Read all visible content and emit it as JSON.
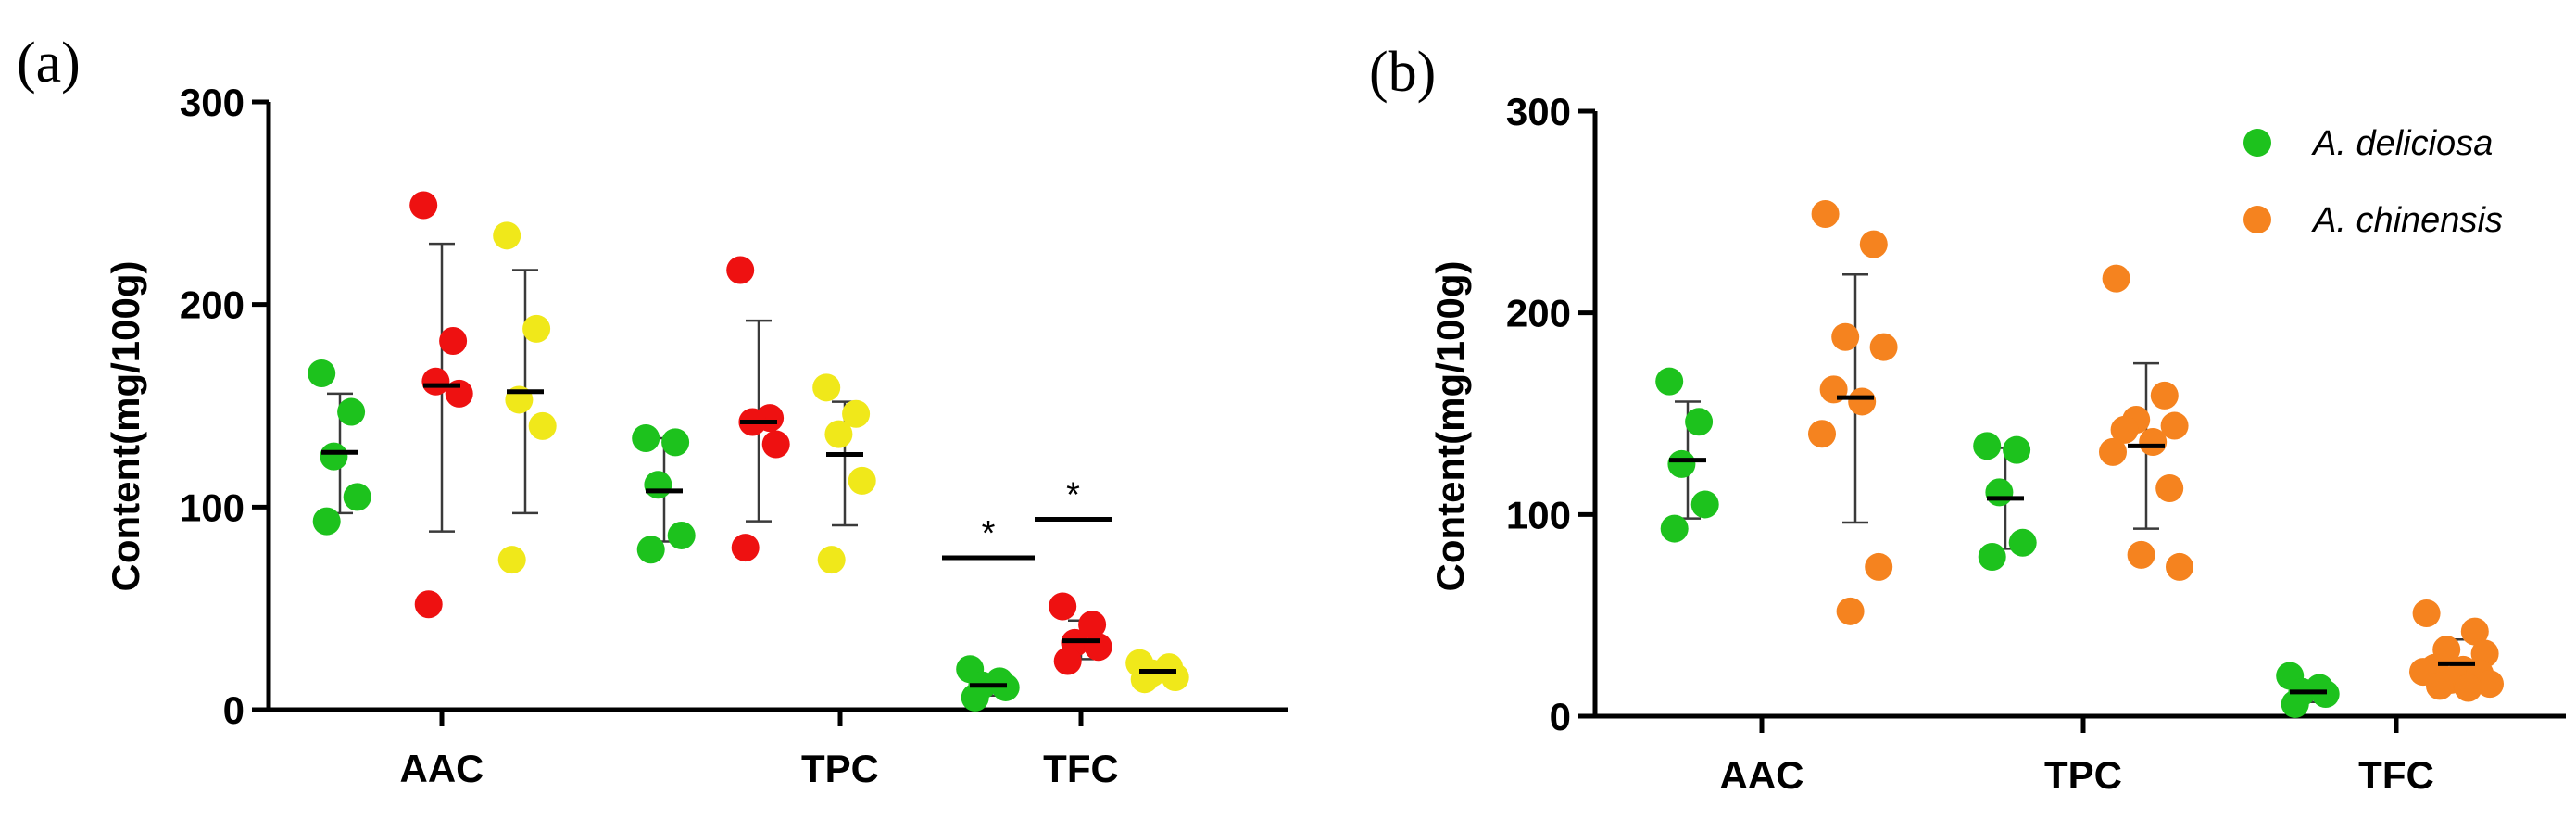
{
  "chart_data": [
    {
      "type": "scatter",
      "panel_label": "(a)",
      "ylabel": "Content(mg/100g)",
      "ylim": [
        0,
        300
      ],
      "yticks": [
        0,
        100,
        200,
        300
      ],
      "categories": [
        "AAC",
        "TPC",
        "TFC"
      ],
      "colors": [
        "#1dc21d",
        "#ee1111",
        "#f0e81a"
      ],
      "groups": [
        {
          "category": "AAC",
          "color": "#1dc21d",
          "points": [
            166,
            147,
            125,
            105,
            93
          ],
          "mean": 127,
          "err_low": 97,
          "err_high": 156
        },
        {
          "category": "AAC",
          "color": "#ee1111",
          "points": [
            249,
            182,
            162,
            156,
            52
          ],
          "mean": 160,
          "err_low": 88,
          "err_high": 230
        },
        {
          "category": "AAC",
          "color": "#f0e81a",
          "points": [
            234,
            188,
            153,
            140,
            74
          ],
          "mean": 157,
          "err_low": 97,
          "err_high": 217
        },
        {
          "category": "TPC",
          "color": "#1dc21d",
          "points": [
            134,
            132,
            111,
            86,
            79
          ],
          "mean": 108,
          "err_low": 83,
          "err_high": 134
        },
        {
          "category": "TPC",
          "color": "#ee1111",
          "points": [
            217,
            144,
            142,
            131,
            80
          ],
          "mean": 142,
          "err_low": 93,
          "err_high": 192
        },
        {
          "category": "TPC",
          "color": "#f0e81a",
          "points": [
            159,
            146,
            136,
            113,
            74
          ],
          "mean": 126,
          "err_low": 91,
          "err_high": 152
        },
        {
          "category": "TFC",
          "color": "#1dc21d",
          "points": [
            20,
            14,
            12,
            11,
            6
          ],
          "mean": 12,
          "err_low": 7,
          "err_high": 17
        },
        {
          "category": "TFC",
          "color": "#ee1111",
          "points": [
            51,
            42,
            33,
            31,
            24
          ],
          "mean": 34,
          "err_low": 25,
          "err_high": 44
        },
        {
          "category": "TFC",
          "color": "#f0e81a",
          "points": [
            23,
            21,
            18,
            16,
            15
          ],
          "mean": 19,
          "err_low": 15,
          "err_high": 22
        }
      ],
      "significance": [
        {
          "category": "TFC",
          "from_group": 0,
          "to_group": 1,
          "label": "*",
          "y": 75
        },
        {
          "category": "TFC",
          "from_group": 1,
          "to_group": 2,
          "label": "*",
          "y": 94
        }
      ]
    },
    {
      "type": "scatter",
      "panel_label": "(b)",
      "ylabel": "Content(mg/100g)",
      "ylim": [
        0,
        300
      ],
      "yticks": [
        0,
        100,
        200,
        300
      ],
      "categories": [
        "AAC",
        "TPC",
        "TFC"
      ],
      "legend": [
        {
          "label": "A. deliciosa",
          "color": "#1dc21d"
        },
        {
          "label": "A. chinensis",
          "color": "#f5831f"
        }
      ],
      "series": [
        {
          "name": "A. deliciosa",
          "color": "#1dc21d",
          "groups": [
            {
              "category": "AAC",
              "points": [
                166,
                146,
                125,
                105,
                93
              ],
              "mean": 127,
              "err_low": 98,
              "err_high": 156
            },
            {
              "category": "TPC",
              "points": [
                134,
                132,
                111,
                86,
                79
              ],
              "mean": 108,
              "err_low": 83,
              "err_high": 133
            },
            {
              "category": "TFC",
              "points": [
                20,
                14,
                12,
                11,
                6
              ],
              "mean": 12,
              "err_low": 7,
              "err_high": 17
            }
          ]
        },
        {
          "name": "A. chinensis",
          "color": "#f5831f",
          "groups": [
            {
              "category": "AAC",
              "points": [
                249,
                234,
                188,
                183,
                162,
                156,
                140,
                74,
                52
              ],
              "mean": 158,
              "err_low": 96,
              "err_high": 219
            },
            {
              "category": "TPC",
              "points": [
                217,
                159,
                147,
                144,
                142,
                136,
                131,
                113,
                80,
                74
              ],
              "mean": 134,
              "err_low": 93,
              "err_high": 175
            },
            {
              "category": "TFC",
              "points": [
                51,
                42,
                33,
                31,
                24,
                23,
                22,
                21,
                18,
                16,
                15,
                14
              ],
              "mean": 26,
              "err_low": 17,
              "err_high": 38
            }
          ]
        }
      ]
    }
  ]
}
